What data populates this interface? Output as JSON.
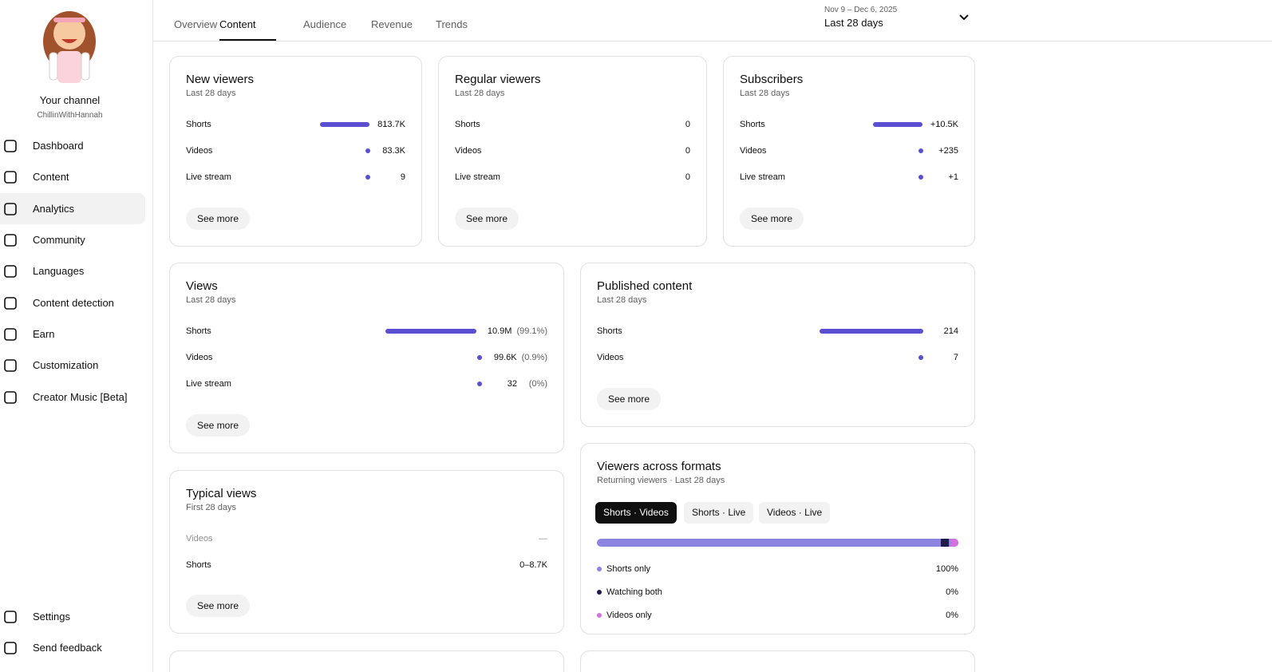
{
  "sidebar": {
    "channel_title": "Your channel",
    "channel_name": "ChillinWithHannah",
    "nav": [
      "Dashboard",
      "Content",
      "Analytics",
      "Community",
      "Languages",
      "Content detection",
      "Earn",
      "Customization",
      "Creator Music [Beta]"
    ],
    "footer": [
      "Settings",
      "Send feedback"
    ]
  },
  "header": {
    "tabs": [
      "Overview",
      "Content",
      "Audience",
      "Revenue",
      "Trends"
    ],
    "date_range": "Nov 9 – Dec 6, 2025",
    "period": "Last 28 days"
  },
  "cards": [
    {
      "title": "New viewers",
      "subtitle": "Last 28 days",
      "rows": [
        {
          "label": "Shorts",
          "value": "813.7K"
        },
        {
          "label": "Videos",
          "value": "83.3K"
        },
        {
          "label": "Live stream",
          "value": "9"
        }
      ],
      "button": "See more"
    },
    {
      "title": "Regular viewers",
      "subtitle": "Last 28 days",
      "rows": [
        {
          "label": "Shorts",
          "value": "0"
        },
        {
          "label": "Videos",
          "value": "0"
        },
        {
          "label": "Live stream",
          "value": "0"
        }
      ],
      "button": "See more"
    },
    {
      "title": "Subscribers",
      "subtitle": "Last 28 days",
      "rows": [
        {
          "label": "Shorts",
          "value": "+10.5K"
        },
        {
          "label": "Videos",
          "value": "+235"
        },
        {
          "label": "Live stream",
          "value": "+1"
        }
      ],
      "button": "See more"
    },
    {
      "title": "Views",
      "subtitle": "Last 28 days",
      "rows": [
        {
          "label": "Shorts",
          "value": "10.9M",
          "share": "(99.1%)"
        },
        {
          "label": "Videos",
          "value": "99.6K",
          "share": "(0.9%)"
        },
        {
          "label": "Live stream",
          "value": "32",
          "share": "(0%)"
        }
      ],
      "button": "See more"
    },
    {
      "title": "Published content",
      "subtitle": "Last 28 days",
      "rows": [
        {
          "label": "Shorts",
          "value": "214"
        },
        {
          "label": "Videos",
          "value": "7"
        }
      ],
      "button": "See more"
    },
    {
      "title": "Typical views",
      "subtitle": "First 28 days",
      "rows": [
        {
          "label": "Videos",
          "value": "—"
        },
        {
          "label": "Shorts",
          "value": "0–8.7K"
        }
      ],
      "button": "See more"
    },
    {
      "title": "Viewers across formats",
      "subtitle": "Returning viewers · Last 28 days",
      "chips": [
        "Shorts · Videos",
        "Shorts · Live",
        "Videos · Live"
      ],
      "rows": [
        {
          "label": "Shorts only",
          "value": "100%"
        },
        {
          "label": "Watching both",
          "value": "0%"
        },
        {
          "label": "Videos only",
          "value": "0%"
        }
      ]
    }
  ]
}
